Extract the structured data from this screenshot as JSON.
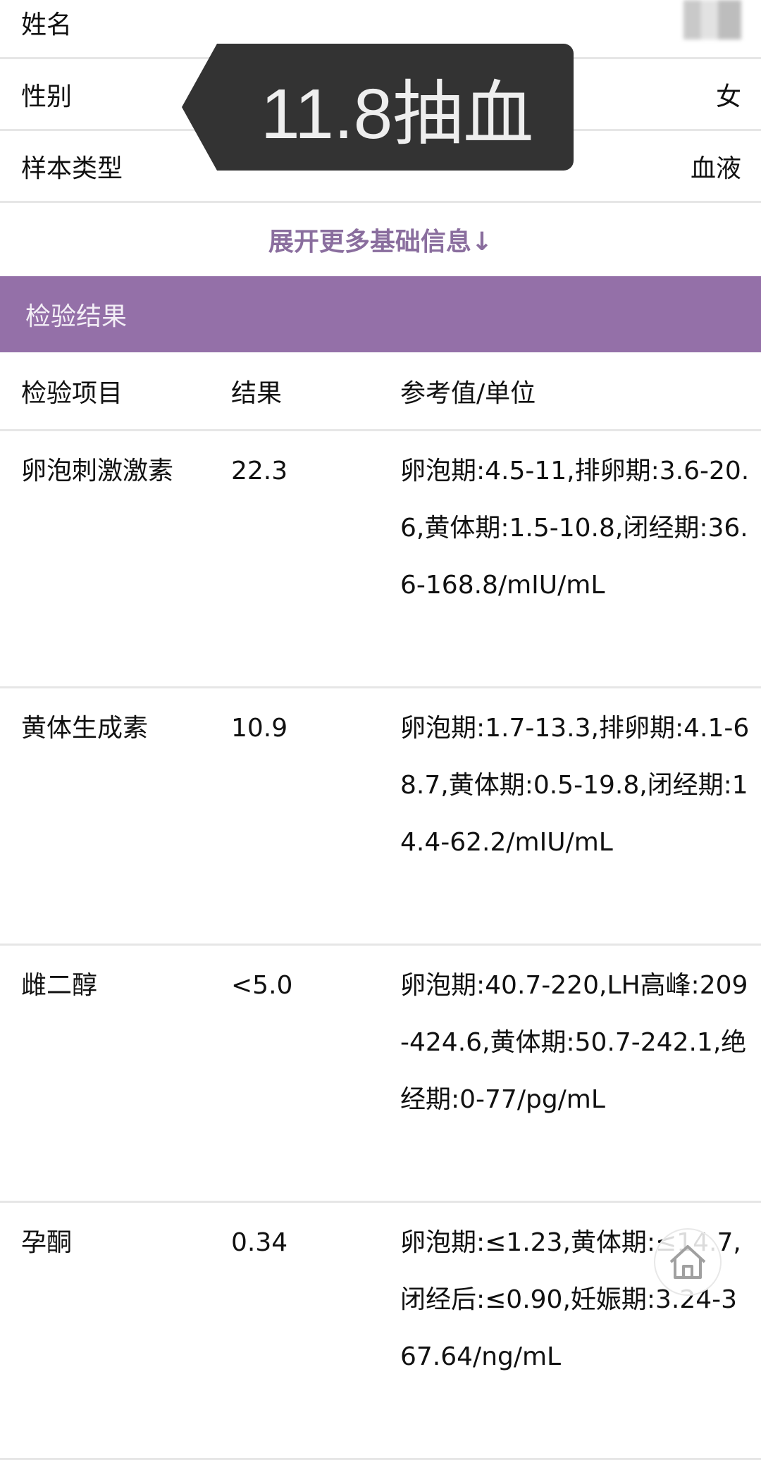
{
  "basic_info": [
    {
      "label": "姓名",
      "value": ""
    },
    {
      "label": "性别",
      "value": "女"
    },
    {
      "label": "样本类型",
      "value": "血液"
    }
  ],
  "expand_label": "展开更多基础信息↓",
  "section_title": "检验结果",
  "section_color": "#9470a8",
  "table": {
    "headers": [
      "检验项目",
      "结果",
      "参考值/单位"
    ],
    "rows": [
      {
        "item": "卵泡刺激激素",
        "result": "22.3",
        "reference": "卵泡期:4.5-11,排卵期:3.6-20.6,黄体期:1.5-10.8,闭经期:36.6-168.8/mIU/mL"
      },
      {
        "item": "黄体生成素",
        "result": "10.9",
        "reference": "卵泡期:1.7-13.3,排卵期:4.1-68.7,黄体期:0.5-19.8,闭经期:14.4-62.2/mIU/mL"
      },
      {
        "item": "雌二醇",
        "result": "<5.0",
        "reference": "卵泡期:40.7-220,LH高峰:209-424.6,黄体期:50.7-242.1,绝经期:0-77/pg/mL"
      },
      {
        "item": "孕酮",
        "result": "0.34",
        "reference": "卵泡期:≤1.23,黄体期:≤14.7,闭经后:≤0.90,妊娠期:3.24-367.64/ng/mL"
      }
    ]
  },
  "annotation": "11.8抽血",
  "home_icon": "home-icon"
}
